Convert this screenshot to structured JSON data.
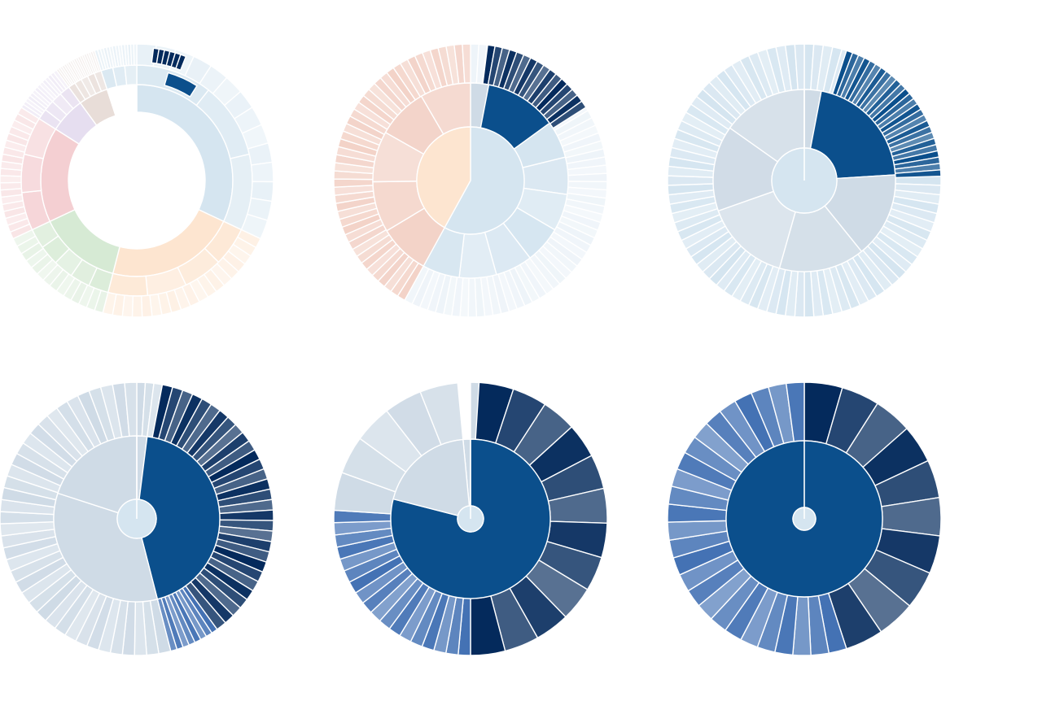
{
  "page": {
    "background": "#ffffff"
  },
  "palette": {
    "dark_navy": "#042a5c",
    "navy": "#0b4f8c",
    "mid_blue": "#4472b4",
    "light_blue": "#d5e5f0",
    "pale_blue": "#eef4f9",
    "peach": "#fde5d0",
    "salmon": "#f3d3c8",
    "green": "#d6ead4",
    "pink": "#f4cfd2",
    "lavender": "#e6def0",
    "taupe": "#e8ddd8",
    "grey_blue": "#cfdbe6"
  },
  "chart_data": [
    {
      "type": "sunburst",
      "rings": 3,
      "hole": true,
      "levels": [
        {
          "ring": "inner",
          "segments": [
            {
              "value": 32,
              "color": "#d5e5f0"
            },
            {
              "value": 22,
              "color": "#fde5d0"
            },
            {
              "value": 14,
              "color": "#d6ead4"
            },
            {
              "value": 16,
              "color": "#f4cfd2"
            },
            {
              "value": 6,
              "color": "#e6def0"
            },
            {
              "value": 5,
              "color": "#e8ddd8"
            },
            {
              "value": 5,
              "color": "#ffffff"
            }
          ]
        },
        {
          "ring": "middle_highlight",
          "segments": [
            {
              "start": 0.055,
              "end": 0.12,
              "color": "#0b4f8c"
            }
          ]
        },
        {
          "ring": "outer_highlight",
          "segments": [
            {
              "start": 0.14,
              "end": 0.2,
              "color": "#042a5c"
            }
          ]
        }
      ]
    },
    {
      "type": "sunburst",
      "rings": 3,
      "hole": false,
      "levels": [
        {
          "ring": "center",
          "segments": [
            {
              "value": 58,
              "color": "#d5e5f0"
            },
            {
              "value": 42,
              "color": "#fde5d0"
            }
          ]
        },
        {
          "ring": "middle",
          "segments": [
            {
              "value": 12,
              "color": "#0b4f8c"
            },
            {
              "value": 46,
              "color": "#d5e5f0"
            },
            {
              "value": 42,
              "color": "#f3d3c8"
            }
          ]
        },
        {
          "ring": "outer_highlight",
          "segments": [
            {
              "start": 0.02,
              "end": 0.16,
              "color": "#042a5c"
            }
          ]
        }
      ]
    },
    {
      "type": "sunburst",
      "rings": 3,
      "hole": false,
      "levels": [
        {
          "ring": "middle",
          "segments": [
            {
              "value": 21,
              "color": "#0b4f8c"
            },
            {
              "value": 79,
              "color": "#d5e5f0"
            }
          ]
        },
        {
          "ring": "outer_highlight",
          "segments": [
            {
              "start": 0.03,
              "end": 0.24,
              "color": "#042a5c"
            }
          ]
        }
      ]
    },
    {
      "type": "sunburst",
      "rings": 3,
      "hole": false,
      "levels": [
        {
          "ring": "middle",
          "segments": [
            {
              "value": 44,
              "color": "#0b4f8c"
            },
            {
              "value": 56,
              "color": "#cfdbe6"
            }
          ]
        },
        {
          "ring": "outer_highlight",
          "segments": [
            {
              "start": 0.0,
              "end": 0.44,
              "color": "#042a5c"
            }
          ]
        }
      ]
    },
    {
      "type": "sunburst",
      "rings": 3,
      "hole": false,
      "levels": [
        {
          "ring": "middle",
          "segments": [
            {
              "value": 79,
              "color": "#0b4f8c"
            },
            {
              "value": 21,
              "color": "#cfdbe6"
            }
          ]
        },
        {
          "ring": "outer_highlight",
          "segments": [
            {
              "start": 0.0,
              "end": 0.76,
              "color": "#042a5c"
            }
          ]
        }
      ]
    },
    {
      "type": "sunburst",
      "rings": 3,
      "hole": false,
      "levels": [
        {
          "ring": "middle",
          "segments": [
            {
              "value": 100,
              "color": "#0b4f8c"
            }
          ]
        },
        {
          "ring": "outer",
          "segments": [
            {
              "value": 100,
              "color": "#042a5c"
            }
          ]
        }
      ]
    }
  ]
}
